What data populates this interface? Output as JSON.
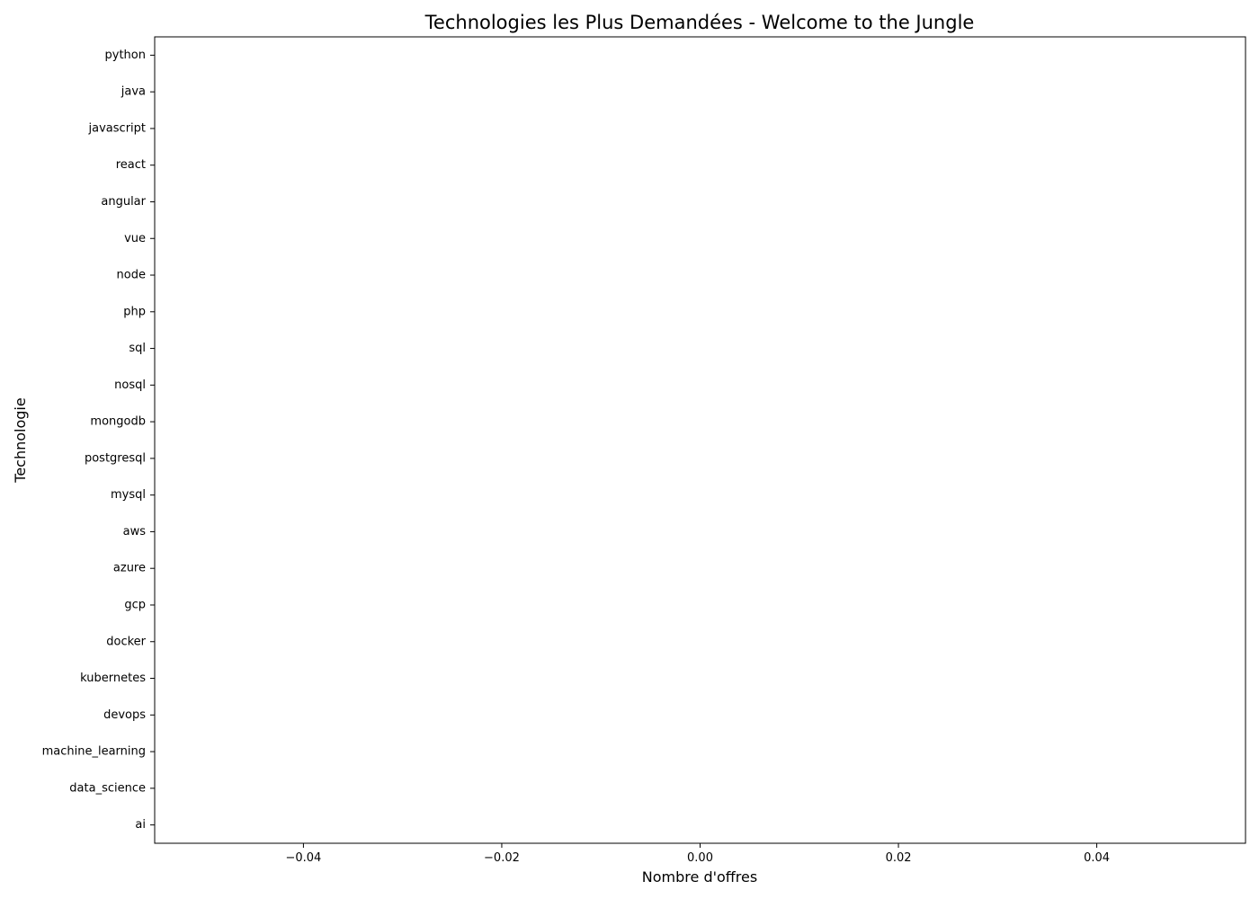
{
  "chart_data": {
    "type": "bar",
    "orientation": "horizontal",
    "title": "Technologies les Plus Demandées - Welcome to the Jungle",
    "xlabel": "Nombre d'offres",
    "ylabel": "Technologie",
    "categories": [
      "python",
      "java",
      "javascript",
      "react",
      "angular",
      "vue",
      "node",
      "php",
      "sql",
      "nosql",
      "mongodb",
      "postgresql",
      "mysql",
      "aws",
      "azure",
      "gcp",
      "docker",
      "kubernetes",
      "devops",
      "machine_learning",
      "data_science",
      "ai"
    ],
    "values": [
      0,
      0,
      0,
      0,
      0,
      0,
      0,
      0,
      0,
      0,
      0,
      0,
      0,
      0,
      0,
      0,
      0,
      0,
      0,
      0,
      0,
      0
    ],
    "xlim": [
      -0.055,
      0.055
    ],
    "xticks": [
      -0.04,
      -0.02,
      0.0,
      0.02,
      0.04
    ],
    "xtick_labels": [
      "−0.04",
      "−0.02",
      "0.00",
      "0.02",
      "0.04"
    ],
    "grid": false,
    "legend": "none",
    "bar_color": "#1f77b4"
  }
}
